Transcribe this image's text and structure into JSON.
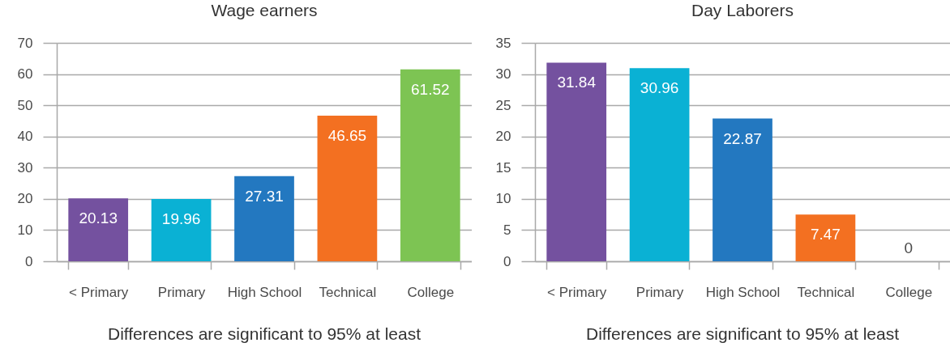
{
  "chart_data": [
    {
      "type": "bar",
      "title": "Wage earners",
      "categories": [
        "< Primary",
        "Primary",
        "High School",
        "Technical",
        "College"
      ],
      "values": [
        20.13,
        19.96,
        27.31,
        46.65,
        61.52
      ],
      "colors": [
        "#74519f",
        "#0ab1d4",
        "#2378c0",
        "#f37021",
        "#7dc453"
      ],
      "ylim": [
        0,
        70
      ],
      "yticks": [
        0,
        10,
        20,
        30,
        40,
        50,
        60,
        70
      ],
      "grid": "y",
      "data_labels": true,
      "annotations": [
        "Differences are significant to 95% at least"
      ]
    },
    {
      "type": "bar",
      "title": "Day Laborers",
      "categories": [
        "< Primary",
        "Primary",
        "High School",
        "Technical",
        "College"
      ],
      "values": [
        31.84,
        30.96,
        22.87,
        7.47,
        0
      ],
      "colors": [
        "#74519f",
        "#0ab1d4",
        "#2378c0",
        "#f37021",
        "#7dc453"
      ],
      "ylim": [
        0,
        35
      ],
      "yticks": [
        0,
        5,
        10,
        15,
        20,
        25,
        30,
        35
      ],
      "grid": "y",
      "data_labels": true,
      "annotations": [
        "Differences are significant to 95% at least"
      ]
    }
  ]
}
